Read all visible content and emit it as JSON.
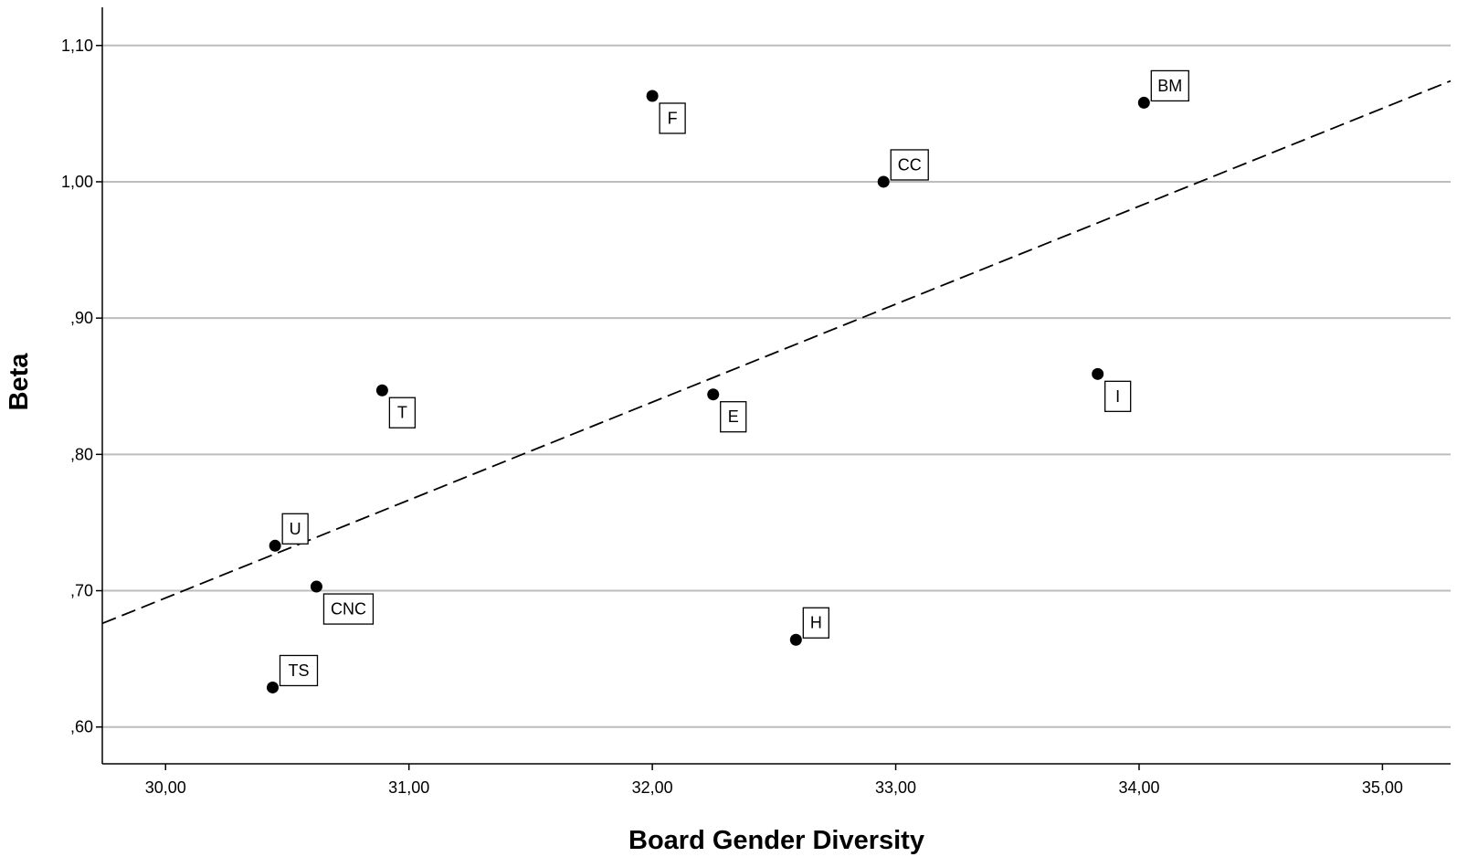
{
  "chart_data": {
    "type": "scatter",
    "xlabel": "Board Gender Diversity",
    "ylabel": "Beta",
    "xlim": [
      29.74,
      35.28
    ],
    "ylim": [
      0.573,
      1.128
    ],
    "x_ticks": [
      30,
      31,
      32,
      33,
      34,
      35
    ],
    "x_tick_labels": [
      "30,00",
      "31,00",
      "32,00",
      "33,00",
      "34,00",
      "35,00"
    ],
    "y_ticks": [
      0.6,
      0.7,
      0.8,
      0.9,
      1.0,
      1.1
    ],
    "y_tick_labels": [
      ",60",
      ",70",
      ",80",
      ",90",
      "1,00",
      "1,10"
    ],
    "grid": "horizontal",
    "points": [
      {
        "label": "U",
        "x": 30.45,
        "y": 0.733,
        "label_pos": "above-right"
      },
      {
        "label": "CNC",
        "x": 30.62,
        "y": 0.703,
        "label_pos": "below-right"
      },
      {
        "label": "TS",
        "x": 30.44,
        "y": 0.629,
        "label_pos": "above-right"
      },
      {
        "label": "T",
        "x": 30.89,
        "y": 0.847,
        "label_pos": "below-right"
      },
      {
        "label": "F",
        "x": 32.0,
        "y": 1.063,
        "label_pos": "below-right"
      },
      {
        "label": "E",
        "x": 32.25,
        "y": 0.844,
        "label_pos": "below-right"
      },
      {
        "label": "H",
        "x": 32.59,
        "y": 0.664,
        "label_pos": "above-right"
      },
      {
        "label": "CC",
        "x": 32.95,
        "y": 1.0,
        "label_pos": "above-right"
      },
      {
        "label": "I",
        "x": 33.83,
        "y": 0.859,
        "label_pos": "below-right"
      },
      {
        "label": "BM",
        "x": 34.02,
        "y": 1.058,
        "label_pos": "above-right"
      }
    ],
    "fit_line": {
      "style": "dashed",
      "points": [
        [
          29.74,
          0.676
        ],
        [
          35.28,
          1.074
        ]
      ]
    },
    "colors": {
      "points": "#000000",
      "grid": "#bdbdbd",
      "fit_line": "#000000",
      "axis": "#000000"
    }
  }
}
